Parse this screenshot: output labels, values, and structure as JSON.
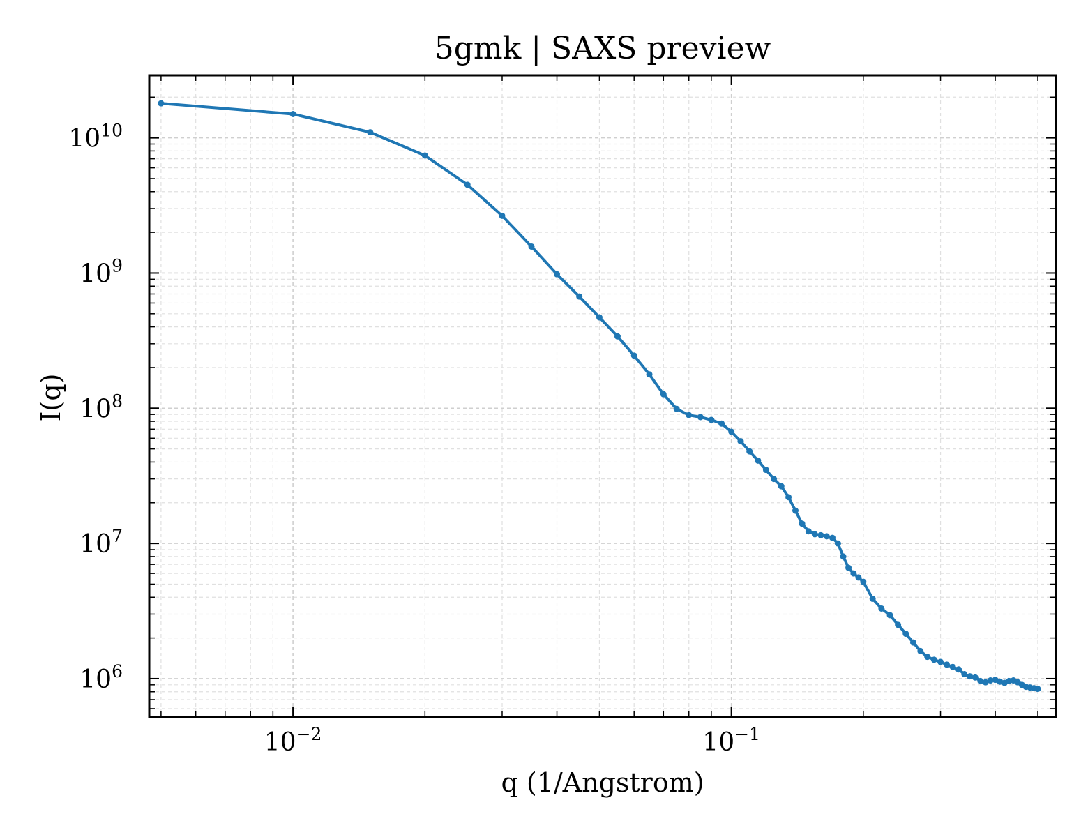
{
  "chart_data": {
    "type": "line",
    "title": "5gmk | SAXS preview",
    "xlabel": "q (1/Angstrom)",
    "ylabel": "I(q)",
    "xscale": "log",
    "yscale": "log",
    "xlim": [
      0.0047,
      0.55
    ],
    "ylim": [
      520000,
      29000000000
    ],
    "grid": true,
    "color": "#1f77b4",
    "xticks": [
      {
        "value": 0.01,
        "base": "10",
        "exp": "−2"
      },
      {
        "value": 0.1,
        "base": "10",
        "exp": "−1"
      }
    ],
    "yticks": [
      {
        "value": 1000000,
        "base": "10",
        "exp": "6"
      },
      {
        "value": 10000000,
        "base": "10",
        "exp": "7"
      },
      {
        "value": 100000000,
        "base": "10",
        "exp": "8"
      },
      {
        "value": 1000000000,
        "base": "10",
        "exp": "9"
      },
      {
        "value": 10000000000,
        "base": "10",
        "exp": "10"
      }
    ],
    "series": [
      {
        "x": [
          0.005,
          0.01,
          0.015,
          0.02,
          0.025,
          0.03,
          0.035,
          0.04,
          0.045,
          0.05,
          0.055,
          0.06,
          0.065,
          0.07,
          0.075,
          0.08,
          0.085,
          0.09,
          0.095,
          0.1,
          0.105,
          0.11,
          0.115,
          0.12,
          0.125,
          0.13,
          0.135,
          0.14,
          0.145,
          0.15,
          0.155,
          0.16,
          0.165,
          0.17,
          0.175,
          0.18,
          0.185,
          0.19,
          0.195,
          0.2,
          0.21,
          0.22,
          0.23,
          0.24,
          0.25,
          0.26,
          0.27,
          0.28,
          0.29,
          0.3,
          0.31,
          0.32,
          0.33,
          0.34,
          0.35,
          0.36,
          0.37,
          0.38,
          0.39,
          0.4,
          0.41,
          0.42,
          0.43,
          0.44,
          0.45,
          0.46,
          0.47,
          0.48,
          0.49,
          0.5
        ],
        "y": [
          18000000000,
          15000000000,
          11000000000,
          7400000000,
          4500000000,
          2650000000,
          1570000000,
          980000000,
          670000000,
          470000000,
          340000000,
          245000000,
          178000000,
          127000000,
          99000000,
          89000000,
          86000000,
          82000000,
          77000000,
          67000000,
          57000000,
          48000000,
          41000000,
          35000000,
          30000000,
          26500000,
          22000000,
          17500000,
          14000000,
          12300000,
          11700000,
          11500000,
          11300000,
          11000000,
          10000000,
          8000000,
          6600000,
          6000000,
          5600000,
          5200000,
          3900000,
          3300000,
          2950000,
          2500000,
          2150000,
          1850000,
          1600000,
          1450000,
          1380000,
          1330000,
          1270000,
          1220000,
          1170000,
          1080000,
          1040000,
          1020000,
          960000,
          940000,
          970000,
          980000,
          950000,
          930000,
          960000,
          970000,
          940000,
          900000,
          870000,
          860000,
          850000,
          840000
        ]
      }
    ]
  }
}
